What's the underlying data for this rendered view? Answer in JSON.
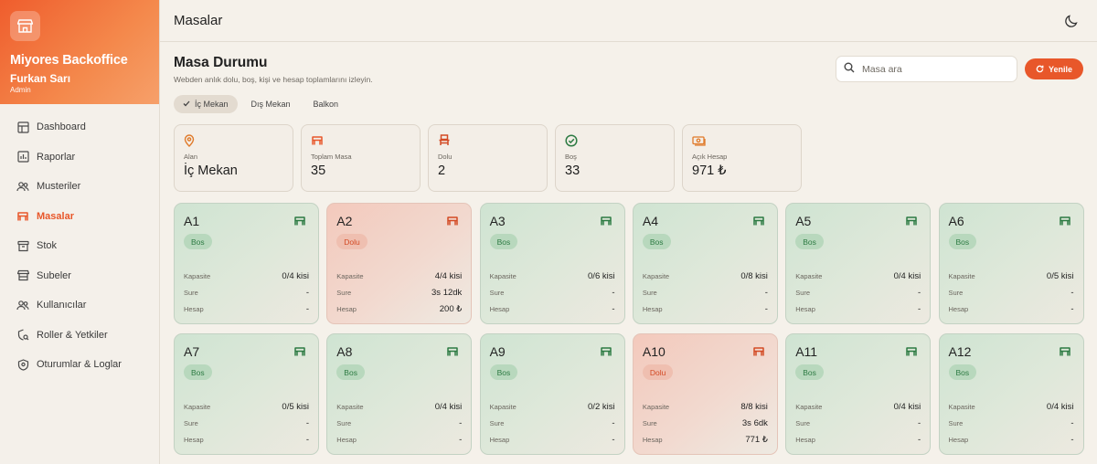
{
  "brand": {
    "title": "Miyores Backoffice",
    "user": "Furkan Sarı",
    "role": "Admin"
  },
  "nav": [
    {
      "label": "Dashboard",
      "icon": "dashboard-icon",
      "active": false
    },
    {
      "label": "Raporlar",
      "icon": "bar-chart-icon",
      "active": false
    },
    {
      "label": "Musteriler",
      "icon": "users-icon",
      "active": false
    },
    {
      "label": "Masalar",
      "icon": "table-icon",
      "active": true
    },
    {
      "label": "Stok",
      "icon": "box-icon",
      "active": false
    },
    {
      "label": "Subeler",
      "icon": "store-icon",
      "active": false
    },
    {
      "label": "Kullanıcılar",
      "icon": "user-group-icon",
      "active": false
    },
    {
      "label": "Roller & Yetkiler",
      "icon": "shield-key-icon",
      "active": false
    },
    {
      "label": "Oturumlar & Loglar",
      "icon": "shield-icon",
      "active": false
    }
  ],
  "topbar": {
    "title": "Masalar",
    "theme_icon": "moon-icon"
  },
  "page": {
    "title": "Masa Durumu",
    "subtitle": "Webden anlık dolu, boş, kişi ve hesap toplamlarını izleyin.",
    "search_placeholder": "Masa ara",
    "refresh_label": "Yenile"
  },
  "tabs": [
    {
      "label": "İç Mekan",
      "active": true
    },
    {
      "label": "Dış Mekan",
      "active": false
    },
    {
      "label": "Balkon",
      "active": false
    }
  ],
  "stats": [
    {
      "label": "Alan",
      "value": "İç Mekan",
      "icon": "map-pin-icon"
    },
    {
      "label": "Toplam Masa",
      "value": "35",
      "icon": "table-icon"
    },
    {
      "label": "Dolu",
      "value": "2",
      "icon": "chair-icon"
    },
    {
      "label": "Boş",
      "value": "33",
      "icon": "check-circle-icon"
    },
    {
      "label": "Açık Hesap",
      "value": "971 ₺",
      "icon": "cash-icon"
    }
  ],
  "row_labels": {
    "capacity": "Kapasite",
    "duration": "Sure",
    "bill": "Hesap"
  },
  "tables": [
    {
      "name": "A1",
      "status": "Bos",
      "occupied": false,
      "capacity": "0/4 kisi",
      "duration": "-",
      "bill": "-"
    },
    {
      "name": "A2",
      "status": "Dolu",
      "occupied": true,
      "capacity": "4/4 kisi",
      "duration": "3s 12dk",
      "bill": "200 ₺"
    },
    {
      "name": "A3",
      "status": "Bos",
      "occupied": false,
      "capacity": "0/6 kisi",
      "duration": "-",
      "bill": "-"
    },
    {
      "name": "A4",
      "status": "Bos",
      "occupied": false,
      "capacity": "0/8 kisi",
      "duration": "-",
      "bill": "-"
    },
    {
      "name": "A5",
      "status": "Bos",
      "occupied": false,
      "capacity": "0/4 kisi",
      "duration": "-",
      "bill": "-"
    },
    {
      "name": "A6",
      "status": "Bos",
      "occupied": false,
      "capacity": "0/5 kisi",
      "duration": "-",
      "bill": "-"
    },
    {
      "name": "A7",
      "status": "Bos",
      "occupied": false,
      "capacity": "0/5 kisi",
      "duration": "-",
      "bill": "-"
    },
    {
      "name": "A8",
      "status": "Bos",
      "occupied": false,
      "capacity": "0/4 kisi",
      "duration": "-",
      "bill": "-"
    },
    {
      "name": "A9",
      "status": "Bos",
      "occupied": false,
      "capacity": "0/2 kisi",
      "duration": "-",
      "bill": "-"
    },
    {
      "name": "A10",
      "status": "Dolu",
      "occupied": true,
      "capacity": "8/8 kisi",
      "duration": "3s 6dk",
      "bill": "771 ₺"
    },
    {
      "name": "A11",
      "status": "Bos",
      "occupied": false,
      "capacity": "0/4 kisi",
      "duration": "-",
      "bill": "-"
    },
    {
      "name": "A12",
      "status": "Bos",
      "occupied": false,
      "capacity": "0/4 kisi",
      "duration": "-",
      "bill": "-"
    }
  ],
  "colors": {
    "accent": "#e8572a",
    "free": "#2c7a42",
    "occupied": "#d34a24"
  }
}
